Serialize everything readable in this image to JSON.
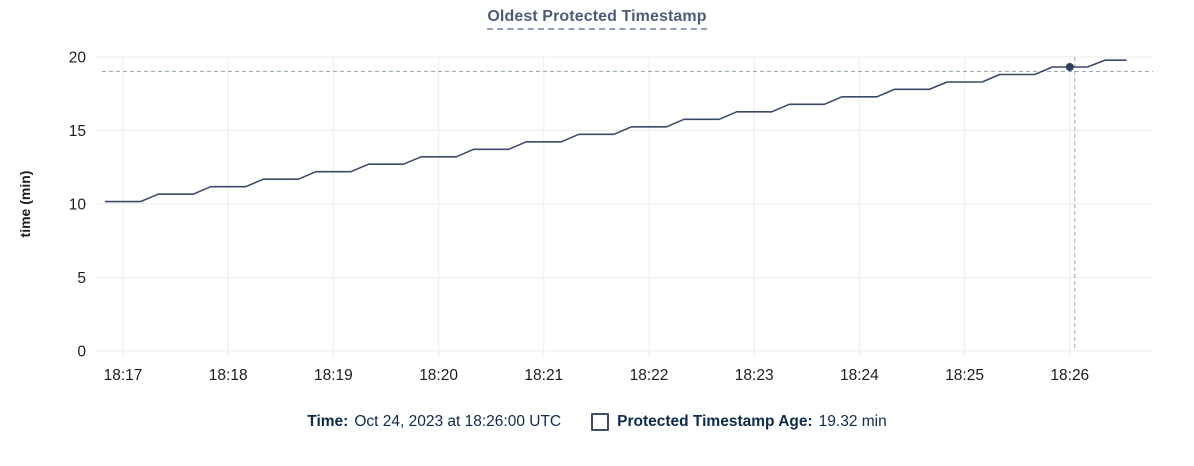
{
  "title": "Oldest Protected Timestamp",
  "legend": {
    "time_label": "Time:",
    "time_value": "Oct 24, 2023 at 18:26:00 UTC",
    "series_label": "Protected Timestamp Age:",
    "series_value": "19.32 min"
  },
  "colors": {
    "title": "#4b5c7c",
    "line": "#3a4a68",
    "marker": "#2f3e5c",
    "grid": "#ededed",
    "axis_text": "#1d1d1f",
    "crosshair": "#92aaba",
    "legend_text": "#0e2b4d"
  },
  "chart_data": {
    "type": "line",
    "title": "Oldest Protected Timestamp",
    "xlabel": "",
    "ylabel": "time (min)",
    "ylim": [
      0,
      20
    ],
    "y_ticks": [
      0,
      5,
      10,
      15,
      20
    ],
    "grid": true,
    "legend_position": "bottom",
    "x_unit": "seconds relative to 18:17:00 UTC on Oct 24, 2023",
    "x_ticks": [
      {
        "label": "18:17",
        "t": 0
      },
      {
        "label": "18:18",
        "t": 60
      },
      {
        "label": "18:19",
        "t": 120
      },
      {
        "label": "18:20",
        "t": 180
      },
      {
        "label": "18:21",
        "t": 240
      },
      {
        "label": "18:22",
        "t": 300
      },
      {
        "label": "18:23",
        "t": 360
      },
      {
        "label": "18:24",
        "t": 420
      },
      {
        "label": "18:25",
        "t": 480
      },
      {
        "label": "18:26",
        "t": 540
      }
    ],
    "series": [
      {
        "name": "Protected Timestamp Age",
        "unit": "min",
        "points": [
          [
            -10,
            10.16
          ],
          [
            10,
            10.16
          ],
          [
            20,
            10.67
          ],
          [
            40,
            10.67
          ],
          [
            50,
            11.18
          ],
          [
            70,
            11.18
          ],
          [
            80,
            11.69
          ],
          [
            100,
            11.69
          ],
          [
            110,
            12.2
          ],
          [
            130,
            12.2
          ],
          [
            140,
            12.71
          ],
          [
            160,
            12.71
          ],
          [
            170,
            13.21
          ],
          [
            190,
            13.21
          ],
          [
            200,
            13.72
          ],
          [
            220,
            13.72
          ],
          [
            230,
            14.23
          ],
          [
            250,
            14.23
          ],
          [
            260,
            14.74
          ],
          [
            280,
            14.74
          ],
          [
            290,
            15.25
          ],
          [
            310,
            15.25
          ],
          [
            320,
            15.76
          ],
          [
            340,
            15.76
          ],
          [
            350,
            16.27
          ],
          [
            370,
            16.27
          ],
          [
            380,
            16.78
          ],
          [
            400,
            16.78
          ],
          [
            410,
            17.29
          ],
          [
            430,
            17.29
          ],
          [
            440,
            17.8
          ],
          [
            460,
            17.8
          ],
          [
            470,
            18.3
          ],
          [
            490,
            18.3
          ],
          [
            500,
            18.81
          ],
          [
            520,
            18.81
          ],
          [
            530,
            19.32
          ],
          [
            550,
            19.32
          ],
          [
            560,
            19.78
          ],
          [
            572,
            19.78
          ]
        ]
      }
    ],
    "highlight": {
      "t": 540,
      "time": "18:26:00",
      "value": 19.32,
      "value_label": "19.32 min"
    }
  }
}
